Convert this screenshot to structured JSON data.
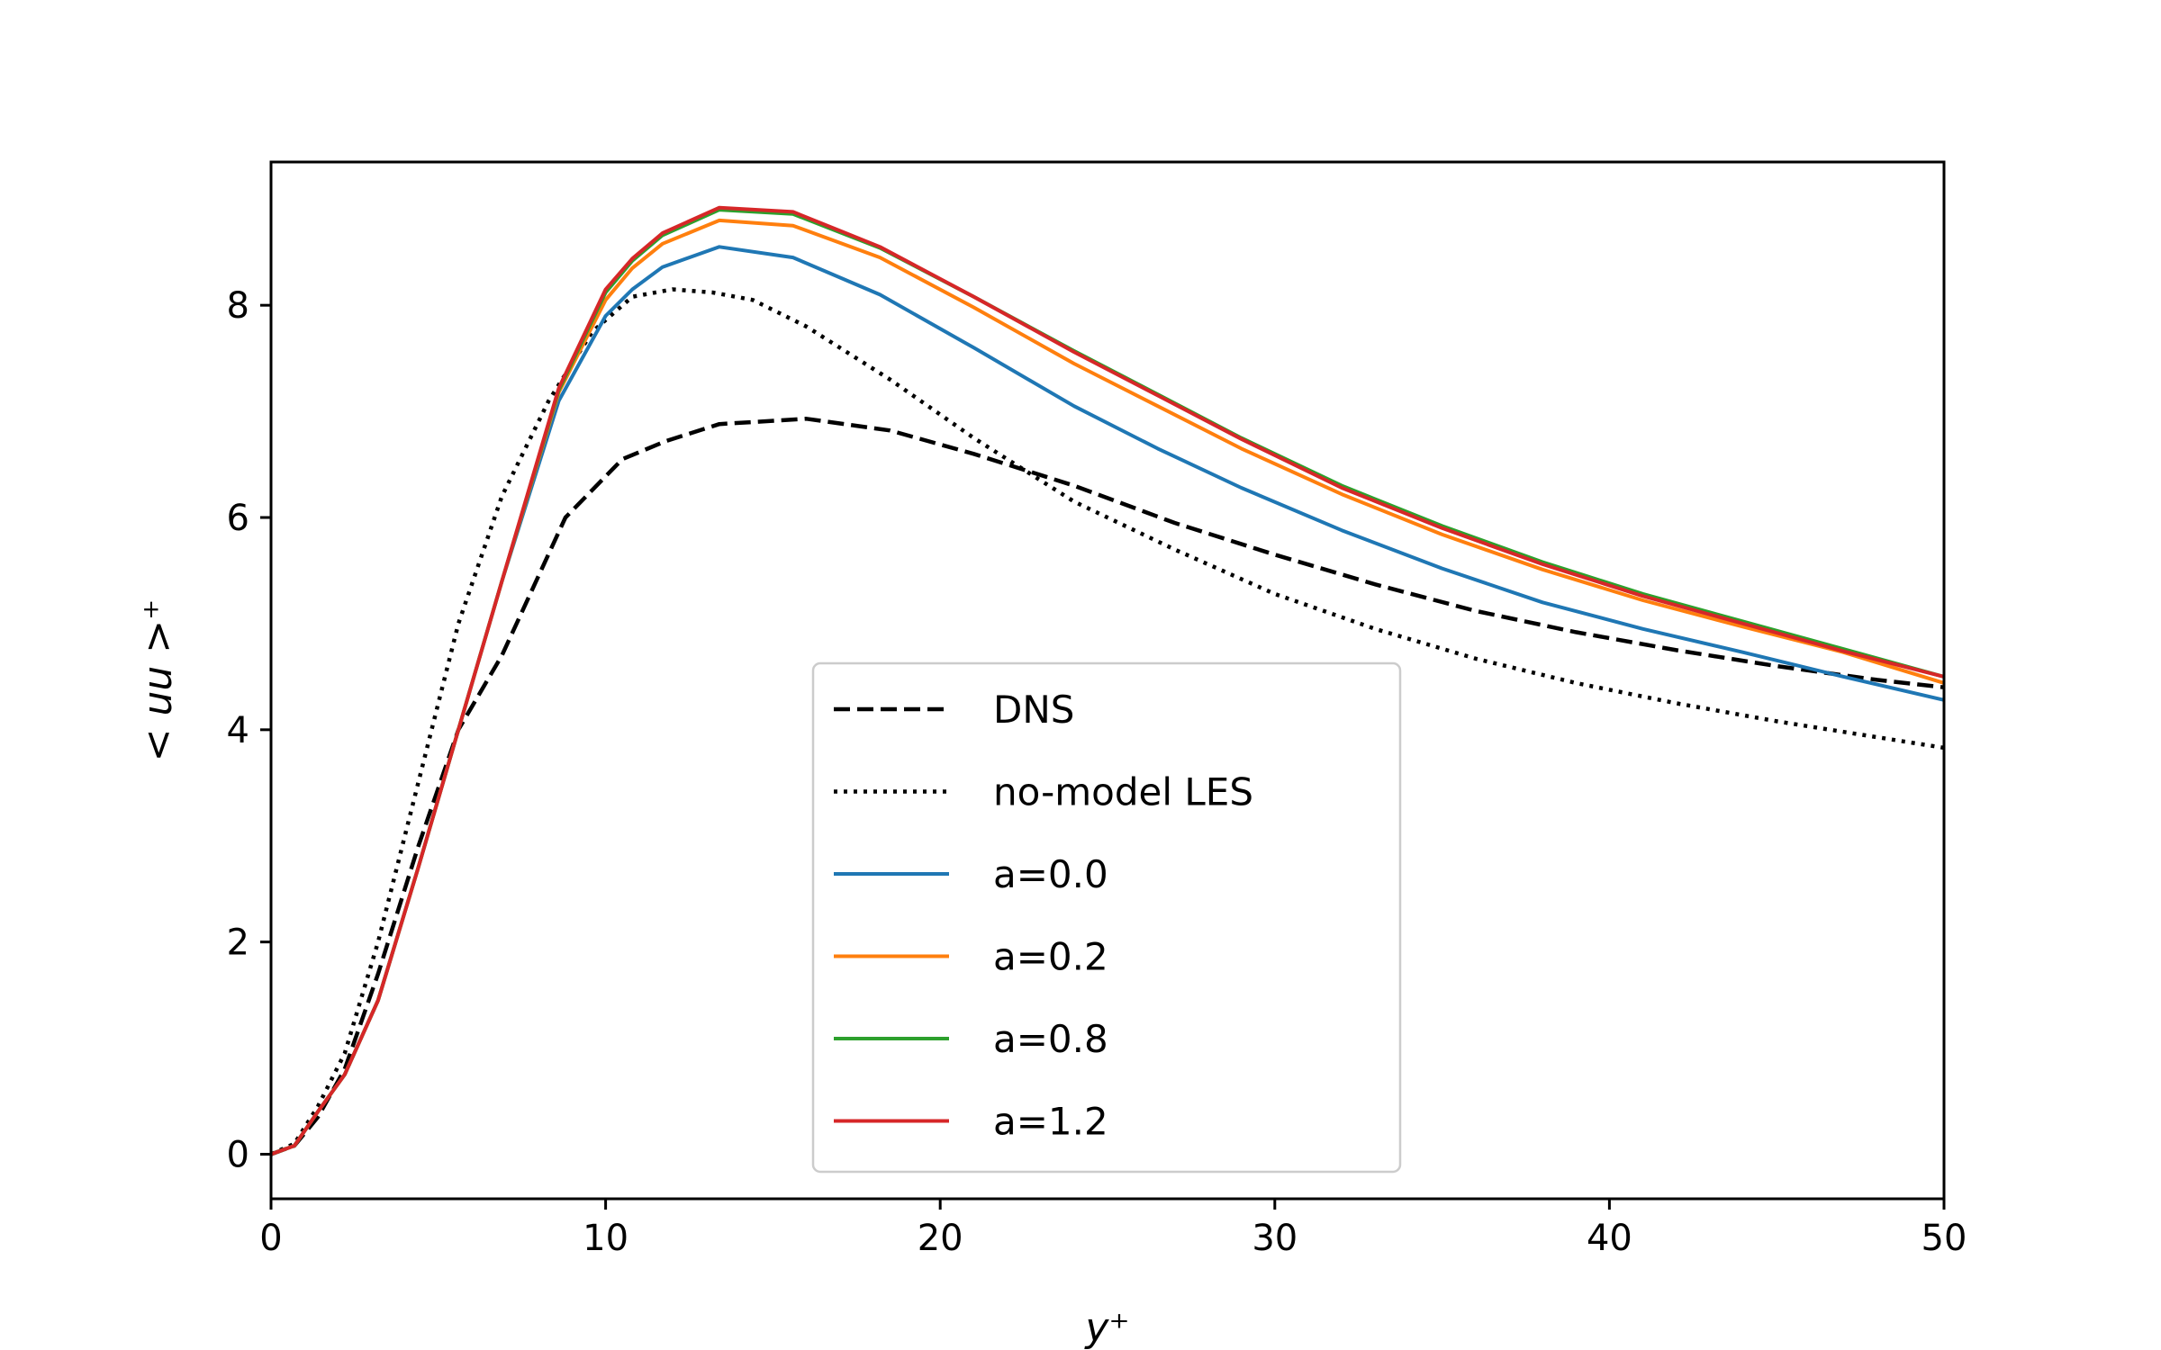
{
  "chart_data": {
    "type": "line",
    "title": "",
    "xlabel": "y⁺",
    "ylabel": "< uu >⁺",
    "xlim": [
      0,
      50
    ],
    "ylim": [
      -0.42,
      9.35
    ],
    "xticks": [
      0,
      10,
      20,
      30,
      40,
      50
    ],
    "yticks": [
      0,
      2,
      4,
      6,
      8
    ],
    "grid": false,
    "legend_position": "lower-center",
    "series": [
      {
        "name": "DNS",
        "color": "#000000",
        "dash": "dashed",
        "x": [
          0,
          0.7,
          1.4,
          2.2,
          3.2,
          4.4,
          5.6,
          6.9,
          8.8,
          10.5,
          11.8,
          13.4,
          16.0,
          18.5,
          21.0,
          24.0,
          27.0,
          30.0,
          33.0,
          36.0,
          39.0,
          42.0,
          45.0,
          48.0,
          50.0
        ],
        "y": [
          0,
          0.08,
          0.35,
          0.8,
          1.7,
          2.9,
          4.0,
          4.7,
          6.0,
          6.55,
          6.72,
          6.88,
          6.93,
          6.82,
          6.6,
          6.3,
          5.95,
          5.65,
          5.37,
          5.12,
          4.92,
          4.75,
          4.6,
          4.47,
          4.4
        ]
      },
      {
        "name": "no-model LES",
        "color": "#000000",
        "dash": "dotted",
        "x": [
          0,
          0.7,
          1.4,
          2.2,
          3.2,
          4.4,
          5.6,
          6.9,
          8.3,
          9.6,
          10.8,
          12.0,
          13.2,
          14.4,
          16.0,
          18.5,
          21.0,
          24.0,
          27.0,
          30.0,
          33.0,
          36.0,
          39.0,
          42.0,
          45.0,
          48.0,
          50.0
        ],
        "y": [
          0,
          0.1,
          0.45,
          0.95,
          2.0,
          3.5,
          5.0,
          6.2,
          7.1,
          7.75,
          8.08,
          8.15,
          8.12,
          8.05,
          7.8,
          7.3,
          6.75,
          6.15,
          5.7,
          5.28,
          4.95,
          4.67,
          4.44,
          4.25,
          4.08,
          3.93,
          3.83
        ]
      },
      {
        "name": "a=0.0",
        "color": "#1f77b4",
        "dash": "solid",
        "x": [
          0,
          0.7,
          1.4,
          2.2,
          3.2,
          4.4,
          5.6,
          6.9,
          8.6,
          10.0,
          10.8,
          11.7,
          13.4,
          15.6,
          18.2,
          21.0,
          24.0,
          26.5,
          29.0,
          32.0,
          35.0,
          38.0,
          41.0,
          44.0,
          47.0,
          50.0
        ],
        "y": [
          0,
          0.08,
          0.4,
          0.75,
          1.45,
          2.7,
          4.0,
          5.4,
          7.1,
          7.9,
          8.15,
          8.36,
          8.55,
          8.45,
          8.1,
          7.6,
          7.05,
          6.65,
          6.28,
          5.88,
          5.52,
          5.2,
          4.95,
          4.73,
          4.5,
          4.28
        ]
      },
      {
        "name": "a=0.2",
        "color": "#ff7f0e",
        "dash": "solid",
        "x": [
          0,
          0.7,
          1.4,
          2.2,
          3.2,
          4.4,
          5.6,
          6.9,
          8.6,
          10.0,
          10.8,
          11.7,
          13.4,
          15.6,
          18.2,
          21.0,
          24.0,
          26.5,
          29.0,
          32.0,
          35.0,
          38.0,
          41.0,
          44.0,
          47.0,
          50.0
        ],
        "y": [
          0,
          0.08,
          0.4,
          0.75,
          1.45,
          2.7,
          4.0,
          5.4,
          7.18,
          8.05,
          8.35,
          8.58,
          8.8,
          8.75,
          8.45,
          7.98,
          7.45,
          7.05,
          6.65,
          6.22,
          5.84,
          5.51,
          5.22,
          4.97,
          4.73,
          4.44
        ]
      },
      {
        "name": "a=0.8",
        "color": "#2ca02c",
        "dash": "solid",
        "x": [
          0,
          0.7,
          1.4,
          2.2,
          3.2,
          4.4,
          5.6,
          6.9,
          8.6,
          10.0,
          10.8,
          11.7,
          13.4,
          15.6,
          18.2,
          21.0,
          24.0,
          26.5,
          29.0,
          32.0,
          35.0,
          38.0,
          41.0,
          44.0,
          47.0,
          50.0
        ],
        "y": [
          0,
          0.08,
          0.4,
          0.75,
          1.45,
          2.7,
          4.0,
          5.4,
          7.2,
          8.12,
          8.42,
          8.66,
          8.9,
          8.86,
          8.54,
          8.08,
          7.57,
          7.16,
          6.75,
          6.3,
          5.92,
          5.58,
          5.28,
          5.02,
          4.76,
          4.5
        ]
      },
      {
        "name": "a=1.2",
        "color": "#d62728",
        "dash": "solid",
        "x": [
          0,
          0.7,
          1.4,
          2.2,
          3.2,
          4.4,
          5.6,
          6.9,
          8.6,
          10.0,
          10.8,
          11.7,
          13.4,
          15.6,
          18.2,
          21.0,
          24.0,
          26.5,
          29.0,
          32.0,
          35.0,
          38.0,
          41.0,
          44.0,
          47.0,
          50.0
        ],
        "y": [
          0,
          0.08,
          0.4,
          0.75,
          1.45,
          2.7,
          4.0,
          5.4,
          7.22,
          8.15,
          8.44,
          8.68,
          8.92,
          8.88,
          8.55,
          8.08,
          7.56,
          7.15,
          6.74,
          6.28,
          5.9,
          5.56,
          5.26,
          5.0,
          4.74,
          4.5
        ]
      }
    ]
  }
}
